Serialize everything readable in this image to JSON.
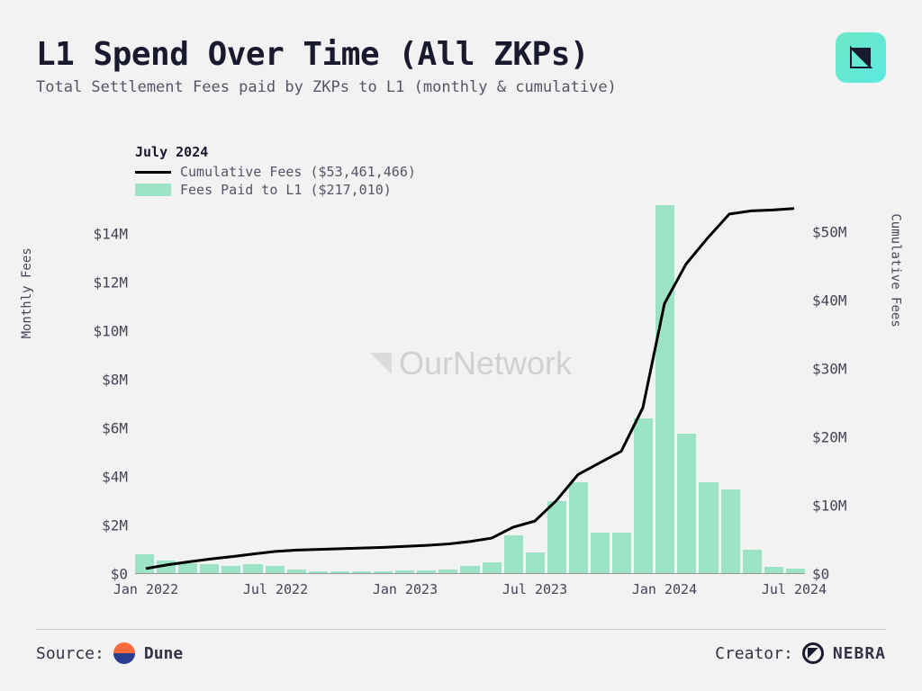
{
  "title": "L1 Spend Over Time (All ZKPs)",
  "subtitle": "Total Settlement Fees paid by ZKPs to L1 (monthly & cumulative)",
  "legend": {
    "heading": "July 2024",
    "line_label": "Cumulative Fees ($53,461,466)",
    "bar_label": "Fees Paid to L1 ($217,010)"
  },
  "chart": {
    "type": "bar+line",
    "background_color": "#f2f2f2",
    "bar_color": "#9ce2c5",
    "line_color": "#000000",
    "line_width": 3,
    "watermark": "OurNetwork",
    "left_axis": {
      "label": "Monthly Fees",
      "ticks": [
        {
          "v": 0,
          "label": "$0"
        },
        {
          "v": 2,
          "label": "$2M"
        },
        {
          "v": 4,
          "label": "$4M"
        },
        {
          "v": 6,
          "label": "$6M"
        },
        {
          "v": 8,
          "label": "$8M"
        },
        {
          "v": 10,
          "label": "$10M"
        },
        {
          "v": 12,
          "label": "$12M"
        },
        {
          "v": 14,
          "label": "$14M"
        }
      ],
      "max": 15.5
    },
    "right_axis": {
      "label": "Cumulative Fees",
      "ticks": [
        {
          "v": 0,
          "label": "$0"
        },
        {
          "v": 10,
          "label": "$10M"
        },
        {
          "v": 20,
          "label": "$20M"
        },
        {
          "v": 30,
          "label": "$30M"
        },
        {
          "v": 40,
          "label": "$40M"
        },
        {
          "v": 50,
          "label": "$50M"
        }
      ],
      "max": 55
    },
    "x_ticks": [
      {
        "i": 0,
        "label": "Jan 2022"
      },
      {
        "i": 6,
        "label": "Jul 2022"
      },
      {
        "i": 12,
        "label": "Jan 2023"
      },
      {
        "i": 18,
        "label": "Jul 2023"
      },
      {
        "i": 24,
        "label": "Jan 2024"
      },
      {
        "i": 30,
        "label": "Jul 2024"
      }
    ],
    "bars_million": [
      0.8,
      0.55,
      0.45,
      0.4,
      0.35,
      0.4,
      0.35,
      0.2,
      0.1,
      0.1,
      0.1,
      0.1,
      0.15,
      0.15,
      0.2,
      0.35,
      0.5,
      1.6,
      0.9,
      3.0,
      3.8,
      1.7,
      1.7,
      6.4,
      15.2,
      5.8,
      3.8,
      3.5,
      1.0,
      0.3,
      0.22
    ],
    "cumulative_million": [
      0.8,
      1.35,
      1.8,
      2.2,
      2.55,
      2.95,
      3.3,
      3.5,
      3.6,
      3.7,
      3.8,
      3.9,
      4.05,
      4.2,
      4.4,
      4.75,
      5.25,
      6.85,
      7.75,
      10.75,
      14.55,
      16.25,
      17.95,
      24.35,
      39.55,
      45.35,
      49.15,
      52.65,
      53.1,
      53.24,
      53.46
    ]
  },
  "footer": {
    "source_label": "Source:",
    "source_name": "Dune",
    "creator_label": "Creator:",
    "creator_name": "NEBRA"
  }
}
